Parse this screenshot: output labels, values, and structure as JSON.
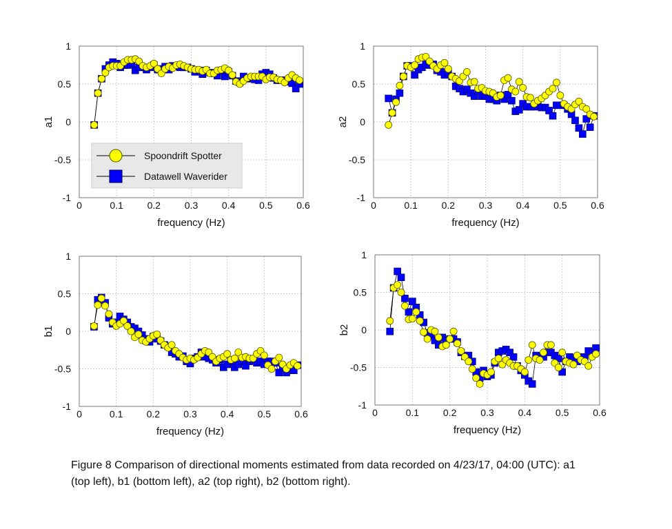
{
  "colors": {
    "spotter_fill": "#ffff00",
    "spotter_edge": "#555500",
    "waverider_fill": "#0000ff",
    "waverider_edge": "#000044",
    "line": "#000000",
    "grid": "#cccccc"
  },
  "legend": {
    "spotter_label": "Spoondrift Spotter",
    "waverider_label": "Datawell Waverider",
    "placement": "lower-left of a1 panel"
  },
  "caption": "Figure 8 Comparison of directional moments estimated from data recorded on 4/23/17, 04:00 (UTC): a1 (top left), b1 (bottom left), a2 (top right), b2 (bottom right).",
  "chart_data": [
    {
      "type": "line",
      "ylabel": "a1",
      "xlabel": "frequency (Hz)",
      "xlim": [
        0,
        0.6
      ],
      "ylim": [
        -1,
        1
      ],
      "xticks": [
        "0",
        "0.1",
        "0.2",
        "0.3",
        "0.4",
        "0.5",
        "0.6"
      ],
      "yticks": [
        "-1",
        "-0.5",
        "0",
        "0.5",
        "1"
      ],
      "grid": true,
      "legend": true,
      "series": [
        {
          "name": "Spoondrift Spotter",
          "marker": "circle",
          "x": [
            0.04,
            0.05,
            0.06,
            0.07,
            0.08,
            0.09,
            0.1,
            0.11,
            0.12,
            0.13,
            0.14,
            0.15,
            0.16,
            0.17,
            0.18,
            0.19,
            0.2,
            0.21,
            0.22,
            0.23,
            0.24,
            0.25,
            0.26,
            0.27,
            0.28,
            0.29,
            0.3,
            0.31,
            0.32,
            0.33,
            0.34,
            0.35,
            0.36,
            0.37,
            0.38,
            0.39,
            0.4,
            0.41,
            0.42,
            0.43,
            0.44,
            0.45,
            0.46,
            0.47,
            0.48,
            0.49,
            0.5,
            0.51,
            0.52,
            0.53,
            0.54,
            0.55,
            0.56,
            0.57,
            0.58,
            0.59
          ],
          "y": [
            -0.04,
            0.38,
            0.57,
            0.65,
            0.72,
            0.74,
            0.74,
            0.74,
            0.79,
            0.82,
            0.82,
            0.83,
            0.8,
            0.74,
            0.72,
            0.74,
            0.77,
            0.7,
            0.64,
            0.7,
            0.73,
            0.71,
            0.75,
            0.76,
            0.74,
            0.72,
            0.7,
            0.69,
            0.69,
            0.67,
            0.69,
            0.64,
            0.64,
            0.68,
            0.69,
            0.71,
            0.68,
            0.62,
            0.53,
            0.5,
            0.54,
            0.58,
            0.6,
            0.6,
            0.6,
            0.6,
            0.56,
            0.59,
            0.59,
            0.56,
            0.55,
            0.52,
            0.58,
            0.62,
            0.58,
            0.55
          ]
        },
        {
          "name": "Datawell Waverider",
          "marker": "square",
          "x": [
            0.04,
            0.05,
            0.06,
            0.07,
            0.08,
            0.09,
            0.1,
            0.11,
            0.12,
            0.13,
            0.14,
            0.15,
            0.16,
            0.17,
            0.18,
            0.19,
            0.2,
            0.21,
            0.22,
            0.23,
            0.24,
            0.25,
            0.26,
            0.27,
            0.28,
            0.29,
            0.3,
            0.31,
            0.32,
            0.33,
            0.34,
            0.35,
            0.36,
            0.37,
            0.38,
            0.39,
            0.4,
            0.41,
            0.42,
            0.43,
            0.44,
            0.45,
            0.46,
            0.47,
            0.48,
            0.49,
            0.5,
            0.51,
            0.52,
            0.53,
            0.54,
            0.55,
            0.56,
            0.57,
            0.58,
            0.59
          ],
          "y": [
            -0.04,
            0.38,
            0.57,
            0.7,
            0.75,
            0.79,
            0.77,
            0.72,
            0.75,
            0.75,
            0.77,
            0.68,
            0.72,
            0.72,
            0.69,
            0.72,
            0.75,
            0.69,
            0.7,
            0.73,
            0.69,
            0.74,
            0.73,
            0.72,
            0.72,
            0.72,
            0.7,
            0.66,
            0.68,
            0.63,
            0.68,
            0.65,
            0.64,
            0.61,
            0.68,
            0.6,
            0.66,
            0.61,
            0.54,
            0.52,
            0.6,
            0.57,
            0.58,
            0.56,
            0.55,
            0.63,
            0.65,
            0.63,
            0.58,
            0.55,
            0.55,
            0.55,
            0.53,
            0.51,
            0.44,
            0.5
          ]
        }
      ]
    },
    {
      "type": "line",
      "ylabel": "a2",
      "xlabel": "frequency (Hz)",
      "xlim": [
        0,
        0.6
      ],
      "ylim": [
        -1,
        1
      ],
      "xticks": [
        "0",
        "0.1",
        "0.2",
        "0.3",
        "0.4",
        "0.5",
        "0.6"
      ],
      "yticks": [
        "-1",
        "-0.5",
        "0",
        "0.5",
        "1"
      ],
      "grid": true,
      "legend": false,
      "series": [
        {
          "name": "Spoondrift Spotter",
          "marker": "circle",
          "x": [
            0.04,
            0.05,
            0.06,
            0.07,
            0.08,
            0.09,
            0.1,
            0.11,
            0.12,
            0.13,
            0.14,
            0.15,
            0.16,
            0.17,
            0.18,
            0.19,
            0.2,
            0.21,
            0.22,
            0.23,
            0.24,
            0.25,
            0.26,
            0.27,
            0.28,
            0.29,
            0.3,
            0.31,
            0.32,
            0.33,
            0.34,
            0.35,
            0.36,
            0.37,
            0.38,
            0.39,
            0.4,
            0.41,
            0.42,
            0.43,
            0.44,
            0.45,
            0.46,
            0.47,
            0.48,
            0.49,
            0.5,
            0.51,
            0.52,
            0.53,
            0.54,
            0.55,
            0.56,
            0.57,
            0.58,
            0.59
          ],
          "y": [
            -0.04,
            0.12,
            0.26,
            0.48,
            0.6,
            0.74,
            0.72,
            0.75,
            0.83,
            0.85,
            0.86,
            0.8,
            0.74,
            0.7,
            0.75,
            0.78,
            0.7,
            0.6,
            0.57,
            0.54,
            0.6,
            0.66,
            0.52,
            0.53,
            0.44,
            0.45,
            0.41,
            0.4,
            0.38,
            0.33,
            0.35,
            0.55,
            0.58,
            0.43,
            0.4,
            0.53,
            0.45,
            0.33,
            0.32,
            0.24,
            0.28,
            0.31,
            0.35,
            0.4,
            0.44,
            0.52,
            0.35,
            0.24,
            0.2,
            0.17,
            0.23,
            0.27,
            0.2,
            0.17,
            0.1,
            0.07
          ]
        },
        {
          "name": "Datawell Waverider",
          "marker": "square",
          "x": [
            0.04,
            0.05,
            0.06,
            0.07,
            0.08,
            0.09,
            0.1,
            0.11,
            0.12,
            0.13,
            0.14,
            0.15,
            0.16,
            0.17,
            0.18,
            0.19,
            0.2,
            0.21,
            0.22,
            0.23,
            0.24,
            0.25,
            0.26,
            0.27,
            0.28,
            0.29,
            0.3,
            0.31,
            0.32,
            0.33,
            0.34,
            0.35,
            0.36,
            0.37,
            0.38,
            0.39,
            0.4,
            0.41,
            0.42,
            0.43,
            0.44,
            0.45,
            0.46,
            0.47,
            0.48,
            0.49,
            0.5,
            0.51,
            0.52,
            0.53,
            0.54,
            0.55,
            0.56,
            0.57,
            0.58,
            0.59
          ],
          "y": [
            0.31,
            0.12,
            0.3,
            0.38,
            0.6,
            0.74,
            0.74,
            0.62,
            0.69,
            0.72,
            0.76,
            0.75,
            0.76,
            0.68,
            0.66,
            0.62,
            0.65,
            0.6,
            0.47,
            0.44,
            0.4,
            0.43,
            0.38,
            0.34,
            0.41,
            0.34,
            0.34,
            0.3,
            0.3,
            0.28,
            0.35,
            0.3,
            0.36,
            0.28,
            0.14,
            0.16,
            0.24,
            0.2,
            0.2,
            0.2,
            0.21,
            0.19,
            0.19,
            0.15,
            0.08,
            0.22,
            0.22,
            0.22,
            0.17,
            0.1,
            0.02,
            -0.08,
            -0.16,
            0.04,
            -0.07,
            0.08
          ]
        }
      ]
    },
    {
      "type": "line",
      "ylabel": "b1",
      "xlabel": "frequency (Hz)",
      "xlim": [
        0,
        0.6
      ],
      "ylim": [
        -1,
        1
      ],
      "xticks": [
        "0",
        "0.1",
        "0.2",
        "0.3",
        "0.4",
        "0.5",
        "0.6"
      ],
      "yticks": [
        "-1",
        "-0.5",
        "0",
        "0.5",
        "1"
      ],
      "grid": true,
      "legend": false,
      "series": [
        {
          "name": "Spoondrift Spotter",
          "marker": "circle",
          "x": [
            0.04,
            0.05,
            0.06,
            0.07,
            0.08,
            0.09,
            0.1,
            0.11,
            0.12,
            0.13,
            0.14,
            0.15,
            0.16,
            0.17,
            0.18,
            0.19,
            0.2,
            0.21,
            0.22,
            0.23,
            0.24,
            0.25,
            0.26,
            0.27,
            0.28,
            0.29,
            0.3,
            0.31,
            0.32,
            0.33,
            0.34,
            0.35,
            0.36,
            0.37,
            0.38,
            0.39,
            0.4,
            0.41,
            0.42,
            0.43,
            0.44,
            0.45,
            0.46,
            0.47,
            0.48,
            0.49,
            0.5,
            0.51,
            0.52,
            0.53,
            0.54,
            0.55,
            0.56,
            0.57,
            0.58,
            0.59
          ],
          "y": [
            0.07,
            0.35,
            0.44,
            0.34,
            0.23,
            0.12,
            0.07,
            0.1,
            0.14,
            0.07,
            0.0,
            -0.08,
            -0.04,
            -0.12,
            -0.14,
            -0.1,
            -0.06,
            -0.04,
            -0.12,
            -0.18,
            -0.22,
            -0.18,
            -0.26,
            -0.3,
            -0.35,
            -0.38,
            -0.36,
            -0.38,
            -0.35,
            -0.3,
            -0.26,
            -0.28,
            -0.34,
            -0.4,
            -0.36,
            -0.34,
            -0.3,
            -0.38,
            -0.36,
            -0.28,
            -0.35,
            -0.34,
            -0.36,
            -0.36,
            -0.3,
            -0.26,
            -0.32,
            -0.45,
            -0.5,
            -0.4,
            -0.35,
            -0.44,
            -0.5,
            -0.45,
            -0.42,
            -0.46
          ]
        },
        {
          "name": "Datawell Waverider",
          "marker": "square",
          "x": [
            0.04,
            0.05,
            0.06,
            0.07,
            0.08,
            0.09,
            0.1,
            0.11,
            0.12,
            0.13,
            0.14,
            0.15,
            0.16,
            0.17,
            0.18,
            0.19,
            0.2,
            0.21,
            0.22,
            0.23,
            0.24,
            0.25,
            0.26,
            0.27,
            0.28,
            0.29,
            0.3,
            0.31,
            0.32,
            0.33,
            0.34,
            0.35,
            0.36,
            0.37,
            0.38,
            0.39,
            0.4,
            0.41,
            0.42,
            0.43,
            0.44,
            0.45,
            0.46,
            0.47,
            0.48,
            0.49,
            0.5,
            0.51,
            0.52,
            0.53,
            0.54,
            0.55,
            0.56,
            0.57,
            0.58,
            0.59
          ],
          "y": [
            0.06,
            0.42,
            0.45,
            0.38,
            0.18,
            0.1,
            0.12,
            0.2,
            0.16,
            0.12,
            0.06,
            0.04,
            0.0,
            -0.05,
            -0.1,
            -0.14,
            -0.07,
            -0.1,
            -0.13,
            -0.18,
            -0.2,
            -0.28,
            -0.3,
            -0.34,
            -0.33,
            -0.4,
            -0.43,
            -0.36,
            -0.34,
            -0.28,
            -0.34,
            -0.36,
            -0.38,
            -0.42,
            -0.38,
            -0.48,
            -0.44,
            -0.4,
            -0.48,
            -0.44,
            -0.4,
            -0.46,
            -0.4,
            -0.38,
            -0.42,
            -0.4,
            -0.44,
            -0.4,
            -0.4,
            -0.42,
            -0.55,
            -0.48,
            -0.55,
            -0.5,
            -0.52,
            -0.45
          ]
        }
      ]
    },
    {
      "type": "line",
      "ylabel": "b2",
      "xlabel": "frequency (Hz)",
      "xlim": [
        0,
        0.6
      ],
      "ylim": [
        -1,
        1
      ],
      "xticks": [
        "0",
        "0.1",
        "0.2",
        "0.3",
        "0.4",
        "0.5",
        "0.6"
      ],
      "yticks": [
        "-1",
        "-0.5",
        "0",
        "0.5",
        "1"
      ],
      "grid": true,
      "legend": false,
      "series": [
        {
          "name": "Spoondrift Spotter",
          "marker": "circle",
          "x": [
            0.04,
            0.05,
            0.06,
            0.07,
            0.08,
            0.09,
            0.1,
            0.11,
            0.12,
            0.13,
            0.14,
            0.15,
            0.16,
            0.17,
            0.18,
            0.19,
            0.2,
            0.21,
            0.22,
            0.23,
            0.24,
            0.25,
            0.26,
            0.27,
            0.28,
            0.29,
            0.3,
            0.31,
            0.32,
            0.33,
            0.34,
            0.35,
            0.36,
            0.37,
            0.38,
            0.39,
            0.4,
            0.41,
            0.42,
            0.43,
            0.44,
            0.45,
            0.46,
            0.47,
            0.48,
            0.49,
            0.5,
            0.51,
            0.52,
            0.53,
            0.54,
            0.55,
            0.56,
            0.57,
            0.58,
            0.59
          ],
          "y": [
            0.12,
            0.56,
            0.6,
            0.5,
            0.32,
            0.14,
            0.15,
            0.24,
            0.12,
            -0.03,
            -0.12,
            0.0,
            -0.02,
            -0.1,
            -0.22,
            -0.2,
            -0.12,
            -0.02,
            -0.18,
            -0.28,
            -0.36,
            -0.42,
            -0.52,
            -0.64,
            -0.72,
            -0.58,
            -0.6,
            -0.56,
            -0.42,
            -0.38,
            -0.46,
            -0.4,
            -0.44,
            -0.48,
            -0.48,
            -0.52,
            -0.56,
            -0.4,
            -0.2,
            -0.38,
            -0.4,
            -0.3,
            -0.2,
            -0.2,
            -0.44,
            -0.5,
            -0.3,
            -0.42,
            -0.44,
            -0.46,
            -0.34,
            -0.4,
            -0.42,
            -0.48,
            -0.36,
            -0.32
          ]
        },
        {
          "name": "Datawell Waverider",
          "marker": "square",
          "x": [
            0.04,
            0.05,
            0.06,
            0.07,
            0.08,
            0.09,
            0.1,
            0.11,
            0.12,
            0.13,
            0.14,
            0.15,
            0.16,
            0.17,
            0.18,
            0.19,
            0.2,
            0.21,
            0.22,
            0.23,
            0.24,
            0.25,
            0.26,
            0.27,
            0.28,
            0.29,
            0.3,
            0.31,
            0.32,
            0.33,
            0.34,
            0.35,
            0.36,
            0.37,
            0.38,
            0.39,
            0.4,
            0.41,
            0.42,
            0.43,
            0.44,
            0.45,
            0.46,
            0.47,
            0.48,
            0.49,
            0.5,
            0.51,
            0.52,
            0.53,
            0.54,
            0.55,
            0.56,
            0.57,
            0.58,
            0.59
          ],
          "y": [
            -0.02,
            0.56,
            0.78,
            0.7,
            0.42,
            0.24,
            0.38,
            0.3,
            0.2,
            0.1,
            -0.04,
            -0.08,
            -0.14,
            -0.2,
            -0.1,
            -0.14,
            -0.12,
            -0.12,
            -0.16,
            -0.3,
            -0.35,
            -0.34,
            -0.42,
            -0.56,
            -0.64,
            -0.54,
            -0.62,
            -0.6,
            -0.44,
            -0.3,
            -0.28,
            -0.26,
            -0.3,
            -0.36,
            -0.48,
            -0.54,
            -0.6,
            -0.68,
            -0.72,
            -0.34,
            -0.36,
            -0.36,
            -0.3,
            -0.3,
            -0.34,
            -0.38,
            -0.56,
            -0.42,
            -0.36,
            -0.4,
            -0.42,
            -0.36,
            -0.36,
            -0.28,
            -0.3,
            -0.24
          ]
        }
      ]
    }
  ]
}
